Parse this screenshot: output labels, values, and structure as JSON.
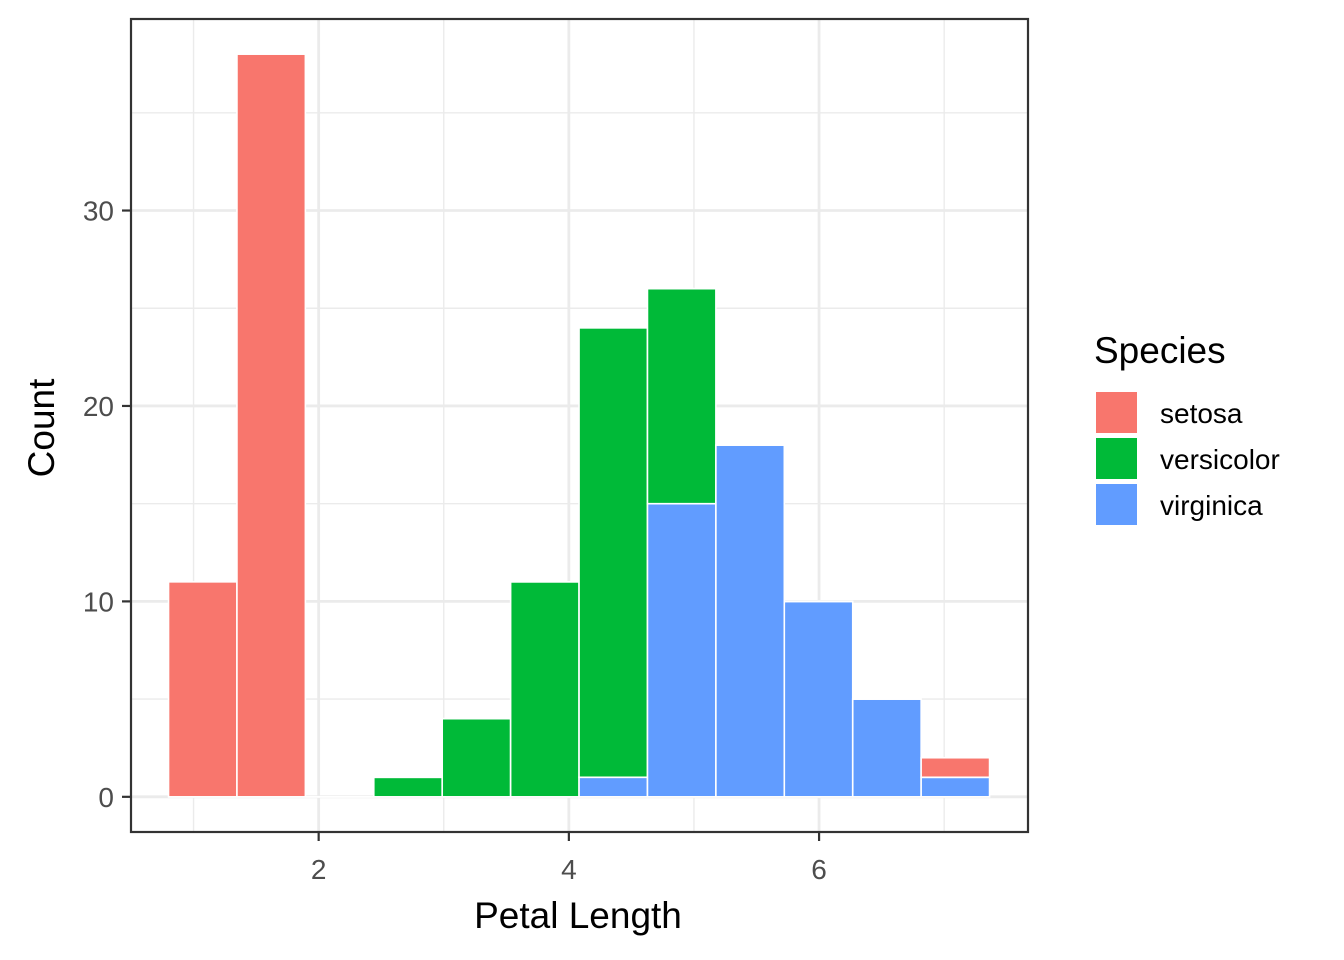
{
  "chart_data": {
    "type": "bar",
    "stacked": true,
    "bin_edges": [
      0.8,
      1.3469,
      1.8938,
      2.4407,
      2.9876,
      3.5345,
      4.0814,
      4.6283,
      5.1752,
      5.7221,
      6.269,
      6.8159,
      7.3628
    ],
    "series": [
      {
        "name": "setosa",
        "values": [
          11,
          38,
          0,
          0,
          0,
          0,
          0,
          0,
          0,
          0,
          0,
          1
        ]
      },
      {
        "name": "versicolor",
        "values": [
          0,
          0,
          0,
          1,
          4,
          11,
          23,
          11,
          0,
          0,
          0,
          0
        ]
      },
      {
        "name": "virginica",
        "values": [
          0,
          0,
          0,
          0,
          0,
          0,
          1,
          15,
          18,
          10,
          5,
          1
        ]
      }
    ],
    "xlabel": "Petal Length",
    "ylabel": "Count",
    "x_ticks": [
      2,
      4,
      6
    ],
    "y_ticks": [
      0,
      10,
      20,
      30
    ],
    "xlim": [
      0.5,
      7.67
    ],
    "ylim": [
      -1.8,
      39.8
    ],
    "grid": true,
    "legend": {
      "title": "Species",
      "position": "right"
    }
  },
  "colors": {
    "setosa": "#F8766D",
    "versicolor": "#00BA38",
    "virginica": "#619CFF",
    "grid": "#EBEBEB",
    "panel_border": "#333333",
    "tick_text": "#4D4D4D"
  }
}
